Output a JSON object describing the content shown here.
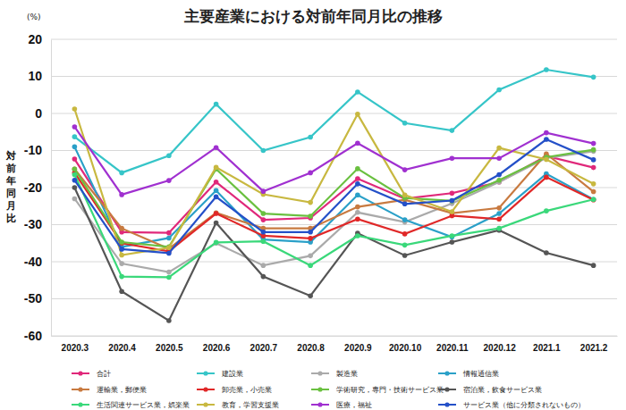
{
  "chart_data": {
    "type": "line",
    "title": "主要産業における対前年同月比の推移",
    "y_label": "対前年同月比",
    "y_unit": "(%)",
    "categories": [
      "2020.3",
      "2020.4",
      "2020.5",
      "2020.6",
      "2020.7",
      "2020.8",
      "2020.9",
      "2020.10",
      "2020.11",
      "2020.12",
      "2021.1",
      "2021.2"
    ],
    "ylim": [
      -60,
      20
    ],
    "yticks": [
      -60,
      -50,
      -40,
      -30,
      -20,
      -10,
      0,
      10,
      20
    ],
    "grid": true,
    "legend": "bottom",
    "marker": "circle",
    "series": [
      {
        "name": "合計",
        "color": "#e0287a",
        "values": [
          -12.3,
          -32,
          -32.2,
          -18.5,
          -28.7,
          -28.2,
          -17.6,
          -23,
          -21.5,
          -18.5,
          -11.5,
          -14.6
        ]
      },
      {
        "name": "建設業",
        "color": "#36c5c8",
        "values": [
          -6.3,
          -16,
          -11.4,
          2.5,
          -10,
          -6.4,
          5.8,
          -2.6,
          -4.6,
          6.4,
          11.8,
          9.8
        ]
      },
      {
        "name": "製造業",
        "color": "#aaaaaa",
        "values": [
          -23,
          -40.5,
          -42.8,
          -35,
          -41,
          -38.4,
          -26.7,
          -29.3,
          -24.3,
          -18.5,
          -12,
          -10.2
        ]
      },
      {
        "name": "情報通信業",
        "color": "#2aa0c8",
        "values": [
          -9,
          -36,
          -33.6,
          -20.8,
          -34,
          -34.7,
          -22,
          -28.7,
          -33.3,
          -27,
          -16.3,
          -23.2
        ]
      },
      {
        "name": "運輸業，郵便業",
        "color": "#c87a40",
        "values": [
          -15,
          -31,
          -36.5,
          -26.8,
          -31,
          -31,
          -25.2,
          -23.3,
          -26.9,
          -25.5,
          -10.9,
          -21.1
        ]
      },
      {
        "name": "卸売業，小売業",
        "color": "#e02828",
        "values": [
          -16,
          -35,
          -37.2,
          -27,
          -33,
          -33.7,
          -28.5,
          -32.5,
          -27.6,
          -28.5,
          -17.2,
          -23.3
        ]
      },
      {
        "name": "学術研究，専門・技術サービス業",
        "color": "#6ac040",
        "values": [
          -15,
          -34.7,
          -36,
          -15,
          -27,
          -27.7,
          -14.9,
          -22.8,
          -23.6,
          -18,
          -11.8,
          -9.8
        ]
      },
      {
        "name": "宿泊業，飲食サービス業",
        "color": "#555555",
        "values": [
          -20,
          -48,
          -55.9,
          -29.5,
          -44,
          -49.2,
          -32.3,
          -38.3,
          -34.7,
          -31.5,
          -37.6,
          -41
        ]
      },
      {
        "name": "生活関連サービス業，娯楽業",
        "color": "#3ad87a",
        "values": [
          -16.5,
          -44,
          -44.2,
          -34.8,
          -34.5,
          -41,
          -33,
          -35.5,
          -33,
          -31,
          -26.3,
          -23.2
        ]
      },
      {
        "name": "教育，学習支援業",
        "color": "#c8b840",
        "values": [
          1.2,
          -38.2,
          -36.2,
          -14.5,
          -21.8,
          -24,
          -0.2,
          -22,
          -26.5,
          -9.3,
          -12.4,
          -19
        ]
      },
      {
        "name": "医療，福祉",
        "color": "#a030d0",
        "values": [
          -3.6,
          -21.9,
          -18.1,
          -9.2,
          -21,
          -16,
          -8,
          -15.2,
          -12.1,
          -12.1,
          -5.2,
          -8.1
        ]
      },
      {
        "name": "サービス業（他に分類されないもの）",
        "color": "#2450c8",
        "values": [
          -18,
          -36.6,
          -37.7,
          -22.5,
          -32,
          -32,
          -19,
          -24.4,
          -23.5,
          -16.5,
          -7,
          -12.5
        ]
      }
    ]
  }
}
